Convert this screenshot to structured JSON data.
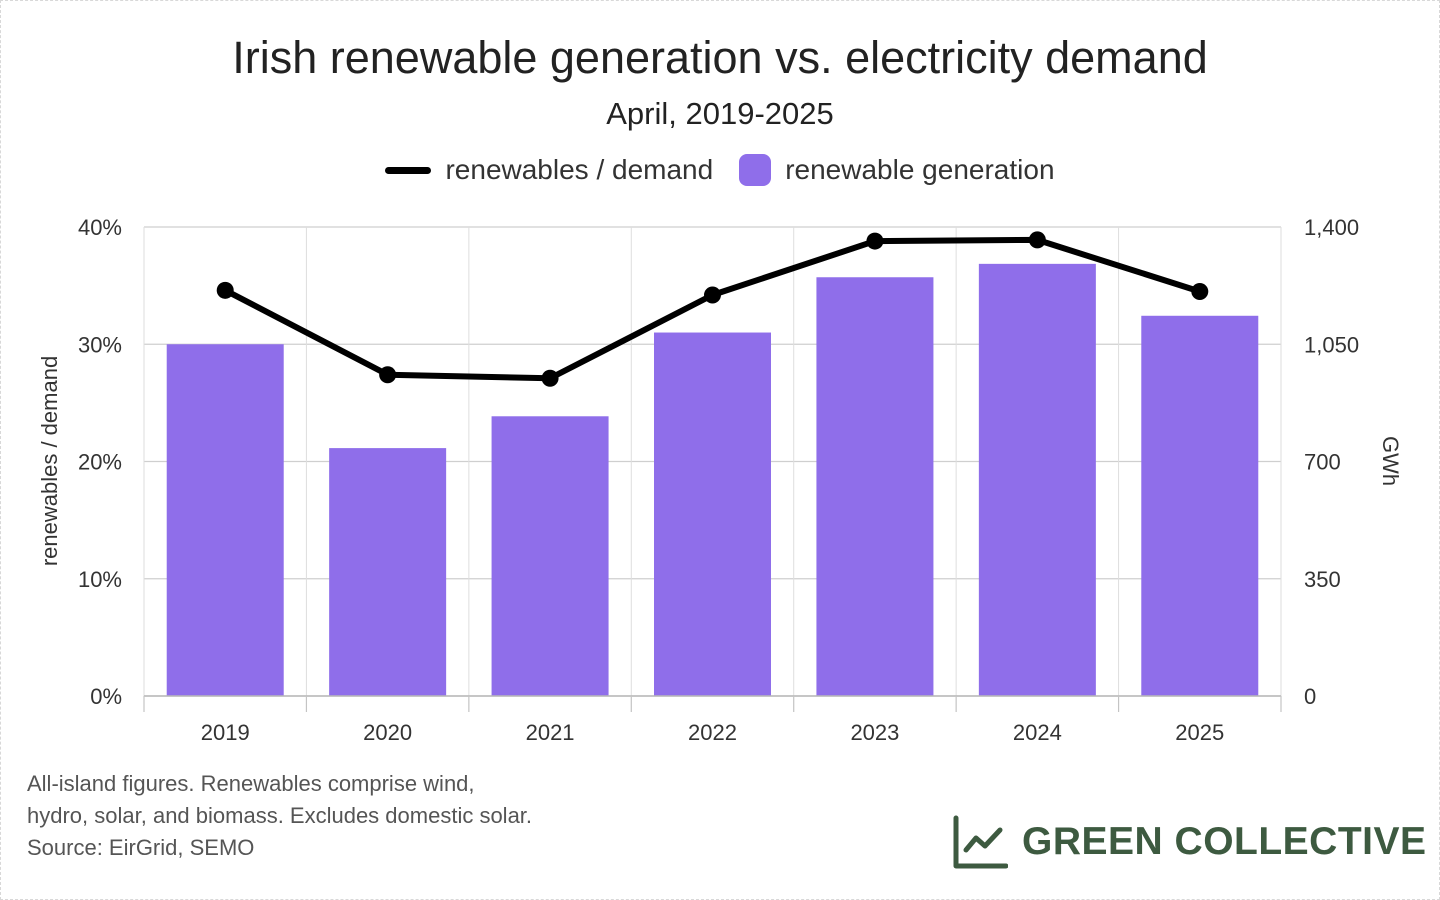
{
  "colors": {
    "bar": "#8f6eea",
    "line": "#000000",
    "grid": "#cfcfcf",
    "brand": "#3d5a40"
  },
  "legend": {
    "line_label": "renewables / demand",
    "bar_label": "renewable generation"
  },
  "footnote": {
    "lines": [
      "All-island figures. Renewables comprise wind,",
      "hydro, solar, and biomass. Excludes domestic solar.",
      "Source: EirGrid, SEMO"
    ]
  },
  "brand": {
    "name": "GREEN COLLECTIVE",
    "icon": "line-chart-icon"
  },
  "chart_data": {
    "type": "bar",
    "title": "Irish renewable generation vs. electricity demand",
    "subtitle": "April, 2019-2025",
    "categories": [
      "2019",
      "2020",
      "2021",
      "2022",
      "2023",
      "2024",
      "2025"
    ],
    "series": [
      {
        "name": "renewable generation",
        "type": "bar",
        "axis": "right",
        "values": [
          1050,
          740,
          835,
          1085,
          1250,
          1290,
          1135
        ]
      },
      {
        "name": "renewables / demand",
        "type": "line",
        "axis": "left",
        "values": [
          34.6,
          27.4,
          27.1,
          34.2,
          38.8,
          38.9,
          34.5
        ]
      }
    ],
    "y_left": {
      "label": "renewables / demand",
      "range": [
        0,
        40
      ],
      "ticks": [
        "0%",
        "10%",
        "20%",
        "30%",
        "40%"
      ]
    },
    "y_right": {
      "label": "GWh",
      "range": [
        0,
        1400
      ],
      "ticks": [
        "0",
        "350",
        "700",
        "1,050",
        "1,400"
      ]
    },
    "grid": true,
    "legend_position": "top-center"
  }
}
